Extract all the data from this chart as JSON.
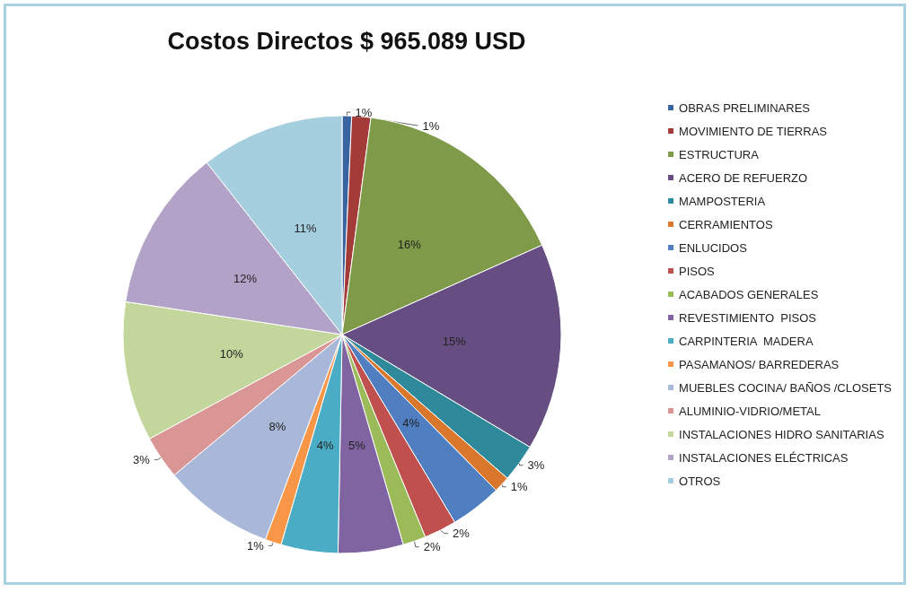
{
  "chart_data": {
    "type": "pie",
    "title": "Costos Directos $ 965.089 USD",
    "categories": [
      "OBRAS PRELIMINARES",
      "MOVIMIENTO DE TIERRAS",
      "ESTRUCTURA",
      "ACERO DE REFUERZO",
      "MAMPOSTERIA",
      "CERRAMIENTOS",
      "ENLUCIDOS",
      "PISOS",
      "ACABADOS GENERALES",
      "REVESTIMIENTO  PISOS",
      "CARPINTERIA  MADERA",
      "PASAMANOS/ BARREDERAS",
      "MUEBLES COCINA/ BAÑOS /CLOSETS",
      "ALUMINIO-VIDRIO/METAL",
      "INSTALACIONES HIDRO SANITARIAS",
      "INSTALACIONES ELÉCTRICAS",
      "OTROS"
    ],
    "values": [
      0.7,
      1.4,
      16.2,
      15.3,
      2.8,
      1.2,
      3.8,
      2.4,
      1.7,
      4.8,
      4.2,
      1.2,
      8.2,
      3.2,
      10.3,
      12.0,
      10.6
    ],
    "value_labels": [
      "1%",
      "1%",
      "16%",
      "15%",
      "3%",
      "1%",
      "4%",
      "2%",
      "2%",
      "5%",
      "4%",
      "1%",
      "8%",
      "3%",
      "10%",
      "12%",
      "11%"
    ],
    "colors": [
      "#3a64a0",
      "#a33b38",
      "#7f9a48",
      "#664e82",
      "#2e8a9b",
      "#d9782d",
      "#4f7fc0",
      "#c0504d",
      "#9bbb59",
      "#8064a2",
      "#4bacc6",
      "#f79646",
      "#a9b8d8",
      "#d99694",
      "#c3d69b",
      "#b3a2c7",
      "#a5cedf"
    ],
    "legend": "right"
  }
}
